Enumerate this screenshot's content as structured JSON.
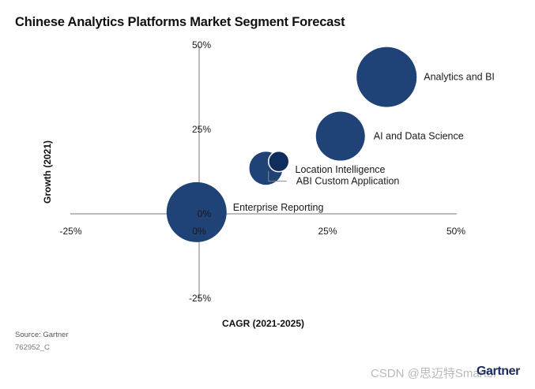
{
  "title": "Chinese Analytics Platforms Market Segment Forecast",
  "source": "Source: Gartner",
  "code": "762952_C",
  "watermark": "CSDN @思迈特Smartbi",
  "brand": "Gartner",
  "colors": {
    "bubble": "#1f4277",
    "bubble_dark": "#102d5e",
    "axis": "#7a7a7a",
    "leader": "#888888"
  },
  "chart_data": {
    "type": "scatter",
    "xlabel": "CAGR (2021-2025)",
    "ylabel": "Growth (2021)",
    "xlim": [
      -25,
      50
    ],
    "ylim": [
      -25,
      50
    ],
    "x_ticks": [
      -25,
      0,
      25,
      50
    ],
    "y_ticks": [
      -25,
      0,
      25,
      50
    ],
    "x_tick_labels": [
      "-25%",
      "0%",
      "25%",
      "50%"
    ],
    "y_tick_labels": [
      "-25%",
      "0%",
      "25%",
      "50%"
    ],
    "grid": false,
    "points": [
      {
        "label": "Analytics and BI",
        "x": 36.5,
        "y": 40.5,
        "size": 38
      },
      {
        "label": "AI and Data Science",
        "x": 27.5,
        "y": 23.0,
        "size": 31
      },
      {
        "label": "Enterprise Reporting",
        "x": -0.5,
        "y": 0.5,
        "size": 38
      },
      {
        "label": "Location Intelligence",
        "x": 13.0,
        "y": 13.5,
        "size": 21
      },
      {
        "label": "ABI Custom Application",
        "x": 15.5,
        "y": 15.5,
        "size": 13
      }
    ]
  }
}
